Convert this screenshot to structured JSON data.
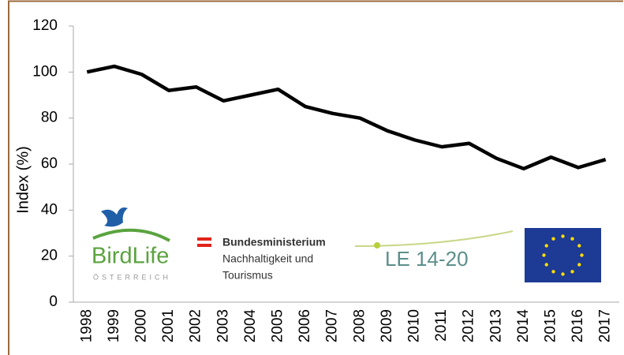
{
  "chart_data": {
    "type": "line",
    "y_label": "Index (%)",
    "categories": [
      "1998",
      "1999",
      "2000",
      "2001",
      "2002",
      "2003",
      "2004",
      "2005",
      "2006",
      "2007",
      "2008",
      "2009",
      "2010",
      "2011",
      "2012",
      "2013",
      "2014",
      "2015",
      "2016",
      "2017"
    ],
    "values": [
      100,
      102.5,
      99,
      92,
      93.5,
      87.5,
      90,
      92.5,
      85,
      82,
      80,
      74.5,
      70.5,
      67.5,
      69,
      62.5,
      58,
      63,
      58.5,
      62
    ],
    "color": "#000000",
    "ylim": [
      0,
      120
    ],
    "yticks": [
      0,
      20,
      40,
      60,
      80,
      100,
      120
    ],
    "grid": false,
    "annotations": [
      "BirdLife",
      "ÖSTERREICH",
      "Bundesministerium",
      "Nachhaltigkeit und",
      "Tourismus",
      "LE 14-20"
    ]
  }
}
